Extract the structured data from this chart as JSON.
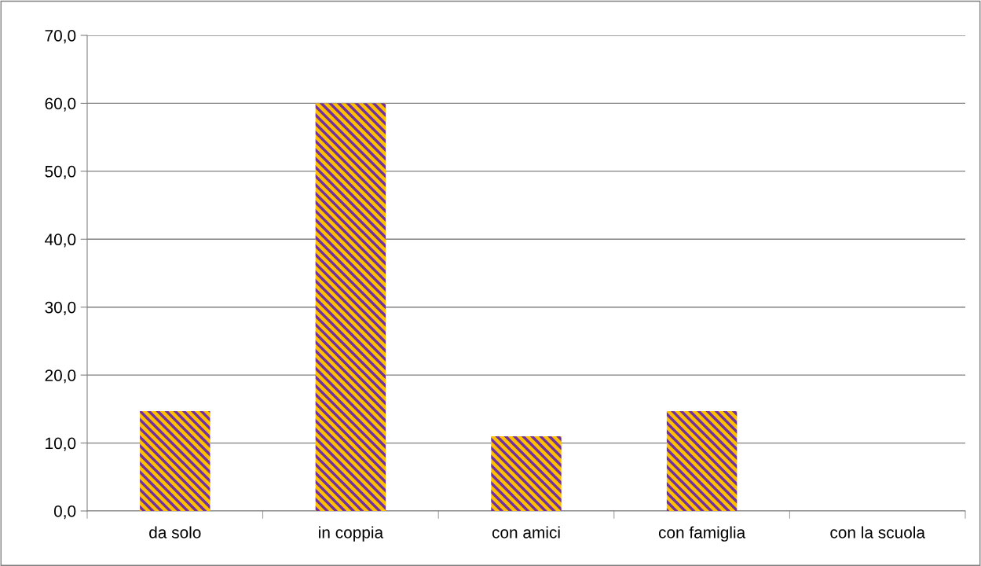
{
  "chart_data": {
    "type": "bar",
    "categories": [
      "da solo",
      "in coppia",
      "con amici",
      "con famiglia",
      "con la scuola"
    ],
    "values": [
      14.7,
      60.0,
      11.0,
      14.7,
      0.0
    ],
    "color": "#ffc000",
    "ylim": [
      0,
      70
    ],
    "yticks": [
      {
        "value": 0,
        "label": "0,0"
      },
      {
        "value": 10,
        "label": "10,0"
      },
      {
        "value": 20,
        "label": "20,0"
      },
      {
        "value": 30,
        "label": "30,0"
      },
      {
        "value": 40,
        "label": "40,0"
      },
      {
        "value": 50,
        "label": "50,0"
      },
      {
        "value": 60,
        "label": "60,0"
      },
      {
        "value": 70,
        "label": "70,0"
      }
    ],
    "grid": "y",
    "legend": false
  }
}
